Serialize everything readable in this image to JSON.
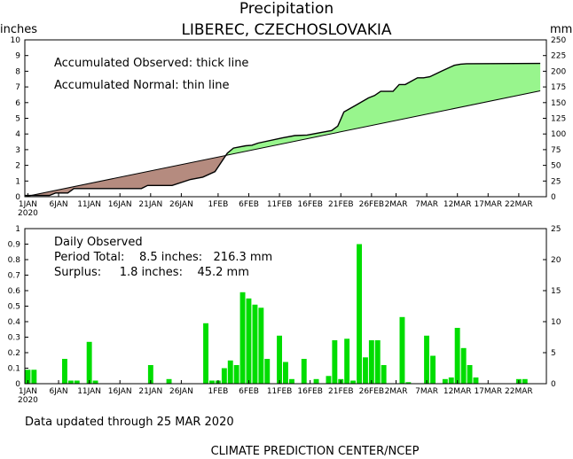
{
  "chart_data": [
    {
      "type": "area",
      "title": "Precipitation",
      "subtitle": "LIBEREC, CZECHOSLOVAKIA",
      "ylabel_left": "inches",
      "ylabel_right": "mm",
      "ylim": [
        0,
        10
      ],
      "ylim_right": [
        0,
        250
      ],
      "y_ticks": [
        "0",
        "1",
        "2",
        "3",
        "4",
        "5",
        "6",
        "7",
        "8",
        "9",
        "10"
      ],
      "y_ticks_right": [
        "0",
        "25",
        "50",
        "75",
        "100",
        "125",
        "150",
        "175",
        "200",
        "225",
        "250"
      ],
      "annotations": [
        "Accumulated Observed: thick line",
        "Accumulated Normal: thin line"
      ],
      "x_days": [
        1,
        85
      ],
      "x_ticks": [
        {
          "day": 1,
          "label": "1JAN",
          "label2": "2020"
        },
        {
          "day": 6,
          "label": "6JAN"
        },
        {
          "day": 11,
          "label": "11JAN"
        },
        {
          "day": 16,
          "label": "16JAN"
        },
        {
          "day": 21,
          "label": "21JAN"
        },
        {
          "day": 26,
          "label": "26JAN"
        },
        {
          "day": 32,
          "label": "1FEB"
        },
        {
          "day": 37,
          "label": "6FEB"
        },
        {
          "day": 42,
          "label": "11FEB"
        },
        {
          "day": 47,
          "label": "16FEB"
        },
        {
          "day": 52,
          "label": "21FEB"
        },
        {
          "day": 57,
          "label": "26FEB"
        },
        {
          "day": 61,
          "label": "2MAR"
        },
        {
          "day": 66,
          "label": "7MAR"
        },
        {
          "day": 71,
          "label": "12MAR"
        },
        {
          "day": 76,
          "label": "17MAR"
        },
        {
          "day": 81,
          "label": "22MAR"
        }
      ],
      "normal": {
        "day": [
          1,
          85
        ],
        "value": [
          0,
          6.75
        ]
      },
      "observed": {
        "day": [
          1,
          2,
          5,
          6,
          8,
          9,
          12,
          20,
          21,
          25,
          28,
          30,
          32,
          34,
          35,
          37,
          38,
          39,
          43,
          45,
          47,
          51,
          52,
          53,
          55,
          57,
          58,
          59,
          61,
          62,
          63,
          65,
          66,
          67,
          69,
          71,
          72,
          73,
          85
        ],
        "value": [
          0.08,
          0.08,
          0.08,
          0.24,
          0.24,
          0.52,
          0.52,
          0.52,
          0.72,
          0.72,
          1.1,
          1.25,
          1.6,
          2.78,
          3.1,
          3.25,
          3.28,
          3.42,
          3.75,
          3.9,
          3.93,
          4.22,
          4.5,
          5.4,
          5.85,
          6.3,
          6.45,
          6.72,
          6.72,
          7.15,
          7.15,
          7.58,
          7.58,
          7.65,
          8.02,
          8.38,
          8.45,
          8.48,
          8.5
        ]
      },
      "fill_deficit_color": "#b58b7f",
      "fill_surplus_color": "#98f58d"
    },
    {
      "type": "bar",
      "ylim": [
        0,
        1
      ],
      "ylim_right": [
        0,
        25
      ],
      "y_ticks": [
        "0",
        "0.1",
        "0.2",
        "0.3",
        "0.4",
        "0.5",
        "0.6",
        "0.7",
        "0.8",
        "0.9",
        "1"
      ],
      "y_ticks_right": [
        "0",
        "5",
        "10",
        "15",
        "20",
        "25"
      ],
      "annotations": [
        "Daily Observed",
        "Period Total:    8.5 inches:   216.3 mm",
        "Surplus:     1.8 inches:    45.2 mm"
      ],
      "bar_color": "#00dd00",
      "days": [
        1,
        2,
        7,
        8,
        9,
        11,
        12,
        21,
        24,
        30,
        31,
        32,
        33,
        34,
        35,
        36,
        37,
        38,
        39,
        40,
        42,
        43,
        44,
        46,
        48,
        50,
        51,
        52,
        53,
        54,
        55,
        56,
        57,
        58,
        59,
        62,
        63,
        66,
        67,
        69,
        70,
        71,
        72,
        73,
        74,
        81,
        82
      ],
      "values": [
        0.09,
        0.09,
        0.16,
        0.02,
        0.02,
        0.27,
        0.02,
        0.12,
        0.03,
        0.39,
        0.02,
        0.02,
        0.1,
        0.15,
        0.12,
        0.59,
        0.55,
        0.51,
        0.49,
        0.16,
        0.31,
        0.14,
        0.03,
        0.16,
        0.03,
        0.05,
        0.28,
        0.03,
        0.29,
        0.02,
        0.9,
        0.17,
        0.28,
        0.28,
        0.12,
        0.43,
        0.01,
        0.31,
        0.18,
        0.03,
        0.04,
        0.36,
        0.23,
        0.12,
        0.04,
        0.03,
        0.03
      ]
    }
  ],
  "footer": {
    "updated": "Data updated through 25 MAR 2020",
    "credit": "CLIMATE PREDICTION CENTER/NCEP"
  }
}
